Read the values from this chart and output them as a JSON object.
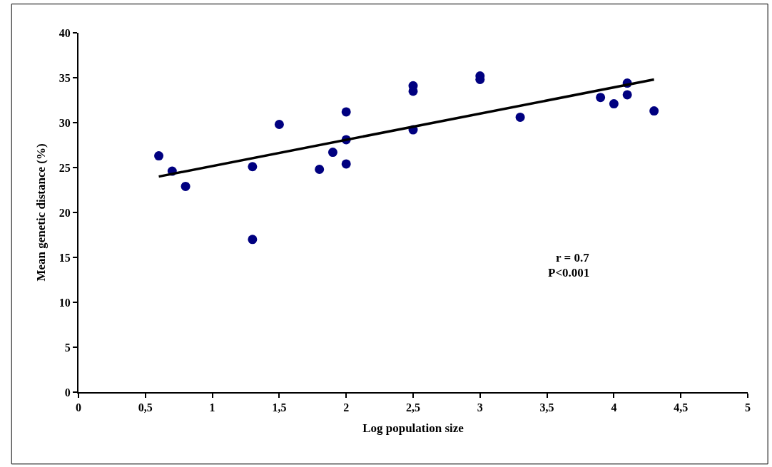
{
  "chart_data": {
    "type": "scatter",
    "xlabel": "Log population size",
    "ylabel": "Mean genetic distance (%)",
    "annotations": [
      "r = 0.7",
      "P<0.001"
    ],
    "series": [
      {
        "color": "#000080",
        "marker": "circle",
        "x": [
          0.6,
          0.7,
          0.8,
          1.3,
          1.3,
          1.5,
          1.8,
          1.9,
          2.0,
          2.0,
          2.0,
          2.5,
          2.5,
          2.5,
          3.0,
          3.0,
          3.3,
          3.9,
          4.0,
          4.1,
          4.1,
          4.3
        ],
        "values": [
          26.3,
          24.6,
          22.9,
          25.1,
          17.0,
          29.8,
          24.8,
          26.7,
          31.2,
          28.1,
          25.4,
          34.1,
          33.5,
          29.2,
          35.2,
          34.8,
          30.6,
          32.8,
          32.1,
          34.4,
          33.1,
          31.3
        ]
      },
      {
        "type": "line",
        "color": "#000000",
        "x": [
          0.6,
          4.3
        ],
        "values": [
          24.0,
          34.8
        ]
      }
    ],
    "xlim": [
      0,
      5
    ],
    "xticks": [
      0,
      {
        "value": 0.5,
        "label": "0,5"
      },
      1,
      {
        "value": 1.5,
        "label": "1,5"
      },
      2,
      {
        "value": 2.5,
        "label": "2,5"
      },
      3,
      {
        "value": 3.5,
        "label": "3,5"
      },
      4,
      {
        "value": 4.5,
        "label": "4,5"
      },
      5
    ],
    "ylim": [
      0,
      40
    ],
    "yticks": [
      0,
      5,
      10,
      15,
      20,
      25,
      30,
      35,
      40
    ],
    "legend": false
  }
}
